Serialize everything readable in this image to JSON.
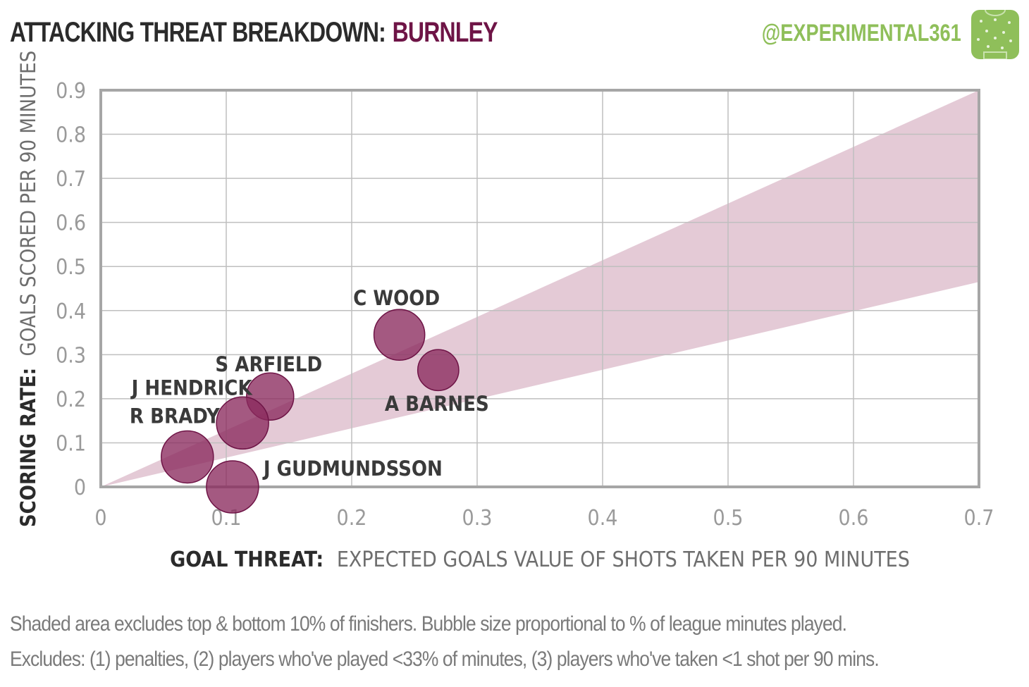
{
  "header": {
    "title_prefix": "ATTACKING THREAT BREAKDOWN:",
    "team": "BURNLEY",
    "handle": "@EXPERIMENTAL361",
    "logo_icon": "pitch-icon",
    "team_color": "#6e1446",
    "handle_color": "#8fbf5a"
  },
  "chart_data": {
    "type": "scatter",
    "xlabel_bold": "GOAL THREAT:",
    "xlabel_rest": "EXPECTED GOALS VALUE OF SHOTS TAKEN PER 90 MINUTES",
    "ylabel_bold": "SCORING RATE:",
    "ylabel_rest": "GOALS SCORED PER 90 MINUTES",
    "xlim": [
      0,
      0.7
    ],
    "ylim": [
      0,
      0.9
    ],
    "xticks": [
      "0",
      "0.1",
      "0.2",
      "0.3",
      "0.4",
      "0.5",
      "0.6",
      "0.7"
    ],
    "yticks": [
      "0",
      "0.1",
      "0.2",
      "0.3",
      "0.4",
      "0.5",
      "0.6",
      "0.7",
      "0.8",
      "0.9"
    ],
    "grid": true,
    "shaded_band": {
      "upper_y_at_xmax": 0.9,
      "lower_y_at_xmax": 0.465,
      "color": "#e4cad6"
    },
    "bubble_color": "#8b2a5e",
    "points": [
      {
        "name": "C WOOD",
        "x": 0.238,
        "y": 0.345,
        "size": 0.95
      },
      {
        "name": "A BARNES",
        "x": 0.269,
        "y": 0.265,
        "size": 0.62
      },
      {
        "name": "S ARFIELD",
        "x": 0.135,
        "y": 0.205,
        "size": 0.82
      },
      {
        "name": "J HENDRICK",
        "x": 0.113,
        "y": 0.145,
        "size": 1.0
      },
      {
        "name": "R BRADY",
        "x": 0.069,
        "y": 0.068,
        "size": 1.0
      },
      {
        "name": "J GUDMUNDSSON",
        "x": 0.105,
        "y": 0.0,
        "size": 1.0
      }
    ]
  },
  "footnotes": {
    "line1": "Shaded area excludes top & bottom 10% of finishers. Bubble size proportional to % of league minutes played.",
    "line2": "Excludes: (1) penalties, (2) players who've played <33% of minutes, (3) players who've taken <1 shot per 90 mins."
  }
}
